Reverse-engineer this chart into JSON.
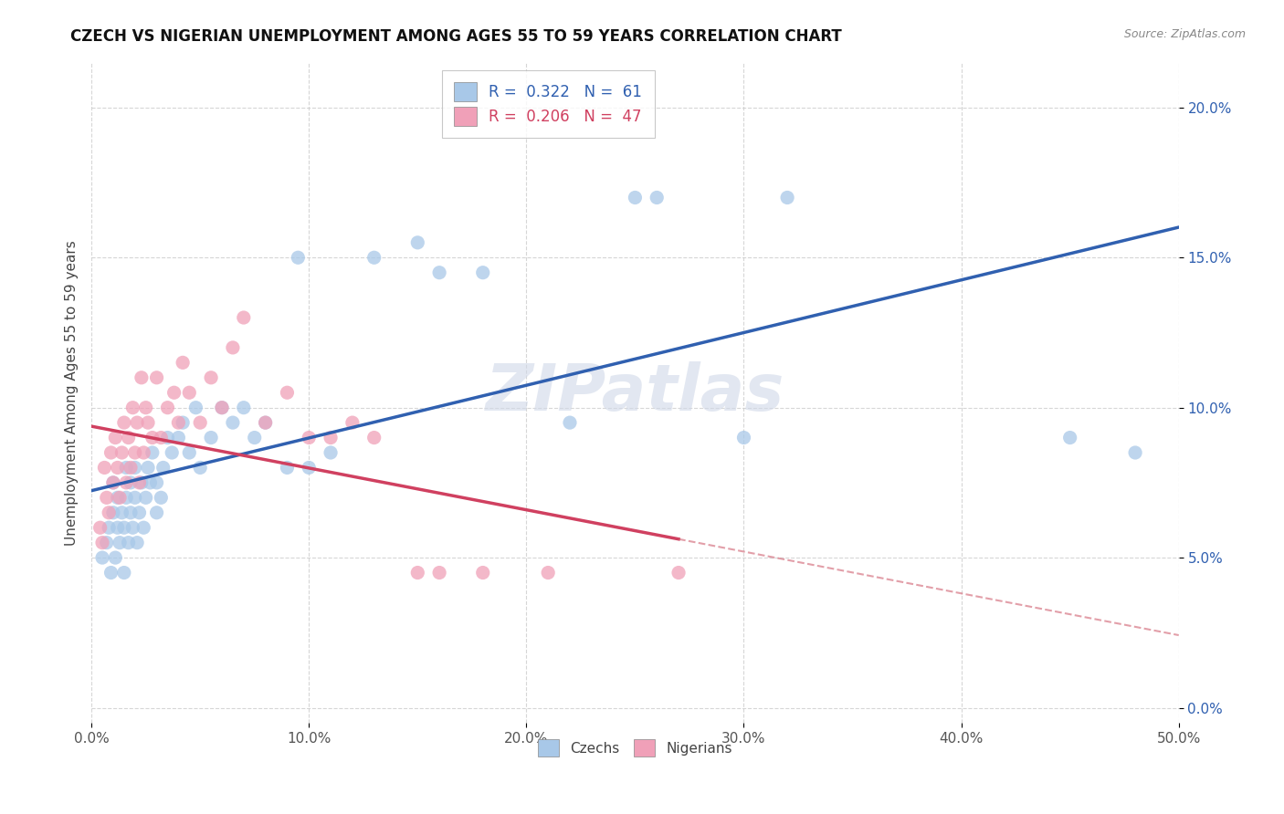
{
  "title": "CZECH VS NIGERIAN UNEMPLOYMENT AMONG AGES 55 TO 59 YEARS CORRELATION CHART",
  "source": "Source: ZipAtlas.com",
  "ylabel": "Unemployment Among Ages 55 to 59 years",
  "xlim": [
    0.0,
    0.5
  ],
  "ylim": [
    -0.005,
    0.215
  ],
  "xticks": [
    0.0,
    0.1,
    0.2,
    0.3,
    0.4,
    0.5
  ],
  "xticklabels": [
    "0.0%",
    "10.0%",
    "20.0%",
    "30.0%",
    "40.0%",
    "50.0%"
  ],
  "yticks": [
    0.0,
    0.05,
    0.1,
    0.15,
    0.2
  ],
  "yticklabels": [
    "0.0%",
    "5.0%",
    "10.0%",
    "15.0%",
    "20.0%"
  ],
  "czech_color": "#A8C8E8",
  "nigerian_color": "#F0A0B8",
  "czech_line_color": "#3060B0",
  "nigerian_line_color": "#D04060",
  "nigerian_dash_color": "#D06070",
  "czech_R": 0.322,
  "czech_N": 61,
  "nigerian_R": 0.206,
  "nigerian_N": 47,
  "watermark": "ZIPatlas",
  "czech_scatter_x": [
    0.005,
    0.007,
    0.008,
    0.009,
    0.01,
    0.01,
    0.011,
    0.012,
    0.012,
    0.013,
    0.014,
    0.015,
    0.015,
    0.016,
    0.016,
    0.017,
    0.018,
    0.018,
    0.019,
    0.02,
    0.02,
    0.021,
    0.022,
    0.023,
    0.024,
    0.025,
    0.026,
    0.027,
    0.028,
    0.03,
    0.03,
    0.032,
    0.033,
    0.035,
    0.037,
    0.04,
    0.042,
    0.045,
    0.048,
    0.05,
    0.055,
    0.06,
    0.065,
    0.07,
    0.075,
    0.08,
    0.09,
    0.095,
    0.1,
    0.11,
    0.13,
    0.15,
    0.16,
    0.18,
    0.22,
    0.25,
    0.26,
    0.3,
    0.32,
    0.45,
    0.48
  ],
  "czech_scatter_y": [
    0.05,
    0.055,
    0.06,
    0.045,
    0.065,
    0.075,
    0.05,
    0.06,
    0.07,
    0.055,
    0.065,
    0.045,
    0.06,
    0.07,
    0.08,
    0.055,
    0.065,
    0.075,
    0.06,
    0.07,
    0.08,
    0.055,
    0.065,
    0.075,
    0.06,
    0.07,
    0.08,
    0.075,
    0.085,
    0.065,
    0.075,
    0.07,
    0.08,
    0.09,
    0.085,
    0.09,
    0.095,
    0.085,
    0.1,
    0.08,
    0.09,
    0.1,
    0.095,
    0.1,
    0.09,
    0.095,
    0.08,
    0.15,
    0.08,
    0.085,
    0.15,
    0.155,
    0.145,
    0.145,
    0.095,
    0.17,
    0.17,
    0.09,
    0.17,
    0.09,
    0.085
  ],
  "nigerian_scatter_x": [
    0.004,
    0.005,
    0.006,
    0.007,
    0.008,
    0.009,
    0.01,
    0.011,
    0.012,
    0.013,
    0.014,
    0.015,
    0.016,
    0.017,
    0.018,
    0.019,
    0.02,
    0.021,
    0.022,
    0.023,
    0.024,
    0.025,
    0.026,
    0.028,
    0.03,
    0.032,
    0.035,
    0.038,
    0.04,
    0.042,
    0.045,
    0.05,
    0.055,
    0.06,
    0.065,
    0.07,
    0.08,
    0.09,
    0.1,
    0.11,
    0.12,
    0.13,
    0.15,
    0.16,
    0.18,
    0.21,
    0.27
  ],
  "nigerian_scatter_y": [
    0.06,
    0.055,
    0.08,
    0.07,
    0.065,
    0.085,
    0.075,
    0.09,
    0.08,
    0.07,
    0.085,
    0.095,
    0.075,
    0.09,
    0.08,
    0.1,
    0.085,
    0.095,
    0.075,
    0.11,
    0.085,
    0.1,
    0.095,
    0.09,
    0.11,
    0.09,
    0.1,
    0.105,
    0.095,
    0.115,
    0.105,
    0.095,
    0.11,
    0.1,
    0.12,
    0.13,
    0.095,
    0.105,
    0.09,
    0.09,
    0.095,
    0.09,
    0.045,
    0.045,
    0.045,
    0.045,
    0.045
  ]
}
